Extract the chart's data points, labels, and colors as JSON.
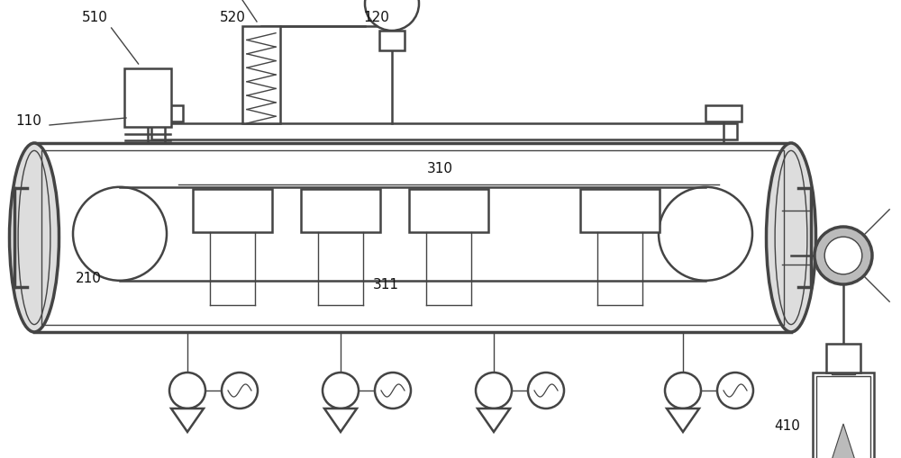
{
  "bg_color": "#ffffff",
  "lc": "#444444",
  "lc_thin": "#555555",
  "gray_fill": "#bbbbbb",
  "light_gray": "#dddddd",
  "dark_gray": "#888888",
  "figsize": [
    10.0,
    5.09
  ],
  "dpi": 100
}
